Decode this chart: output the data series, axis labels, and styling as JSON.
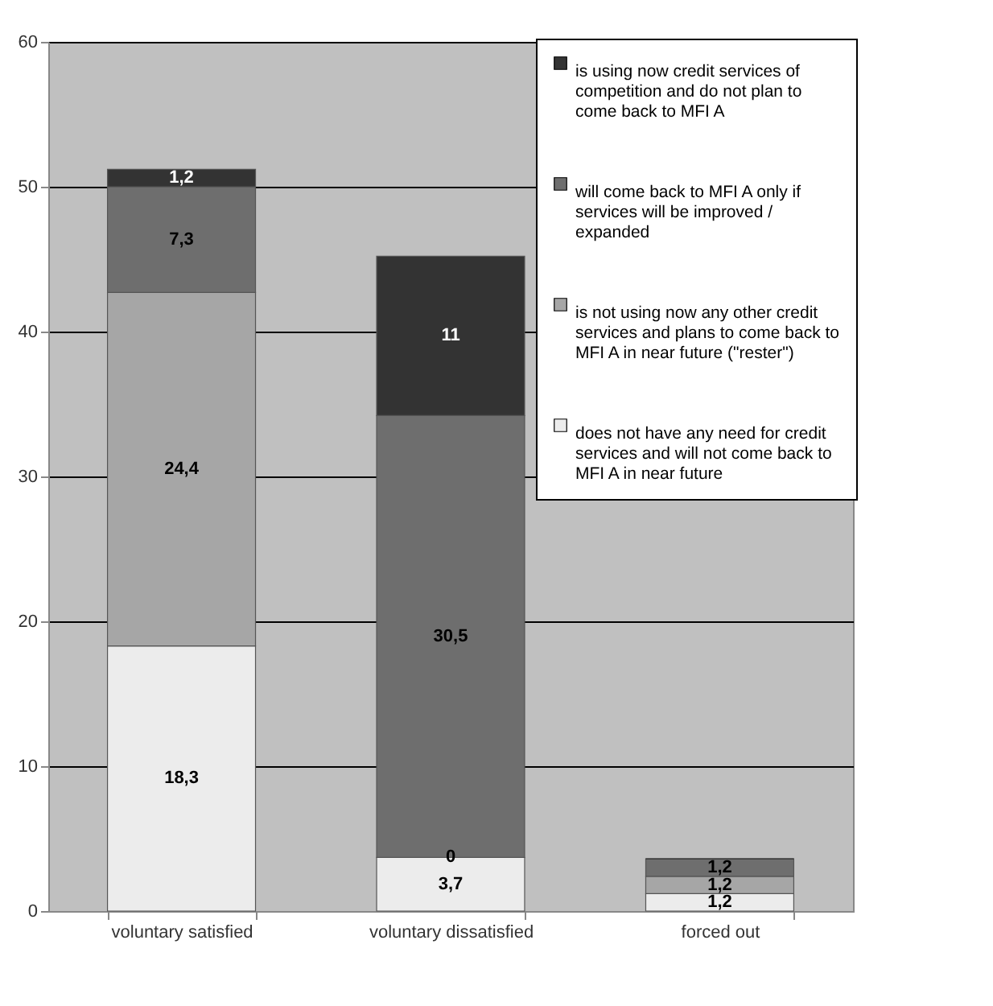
{
  "chart_data": {
    "type": "bar",
    "stacked": true,
    "categories": [
      "voluntary satisfied",
      "voluntary dissatisfied",
      "forced out"
    ],
    "series": [
      {
        "name": "does not have any need for credit services and will not come back to MFI A in near future",
        "color": "#ececec",
        "values": [
          18.3,
          3.7,
          1.2
        ],
        "value_labels": [
          "18,3",
          "3,7",
          "1,2"
        ]
      },
      {
        "name": "is not using now any other credit services and plans to come back to MFI A in near future (\"rester\")",
        "color": "#a6a6a6",
        "values": [
          24.4,
          0,
          1.2
        ],
        "value_labels": [
          "24,4",
          "0",
          "1,2"
        ]
      },
      {
        "name": "will come back to MFI A only if services will be improved / expanded",
        "color": "#6e6e6e",
        "values": [
          7.3,
          30.5,
          1.2
        ],
        "value_labels": [
          "7,3",
          "30,5",
          "1,2"
        ]
      },
      {
        "name": "is using now credit services of competition and do not plan to come back to MFI A",
        "color": "#333333",
        "values": [
          1.2,
          11,
          0
        ],
        "value_labels": [
          "1,2",
          "11",
          null
        ]
      }
    ],
    "ylim": [
      0,
      60
    ],
    "yticks": [
      0,
      10,
      20,
      30,
      40,
      50,
      60
    ],
    "grid": "y",
    "legend": "top right"
  }
}
